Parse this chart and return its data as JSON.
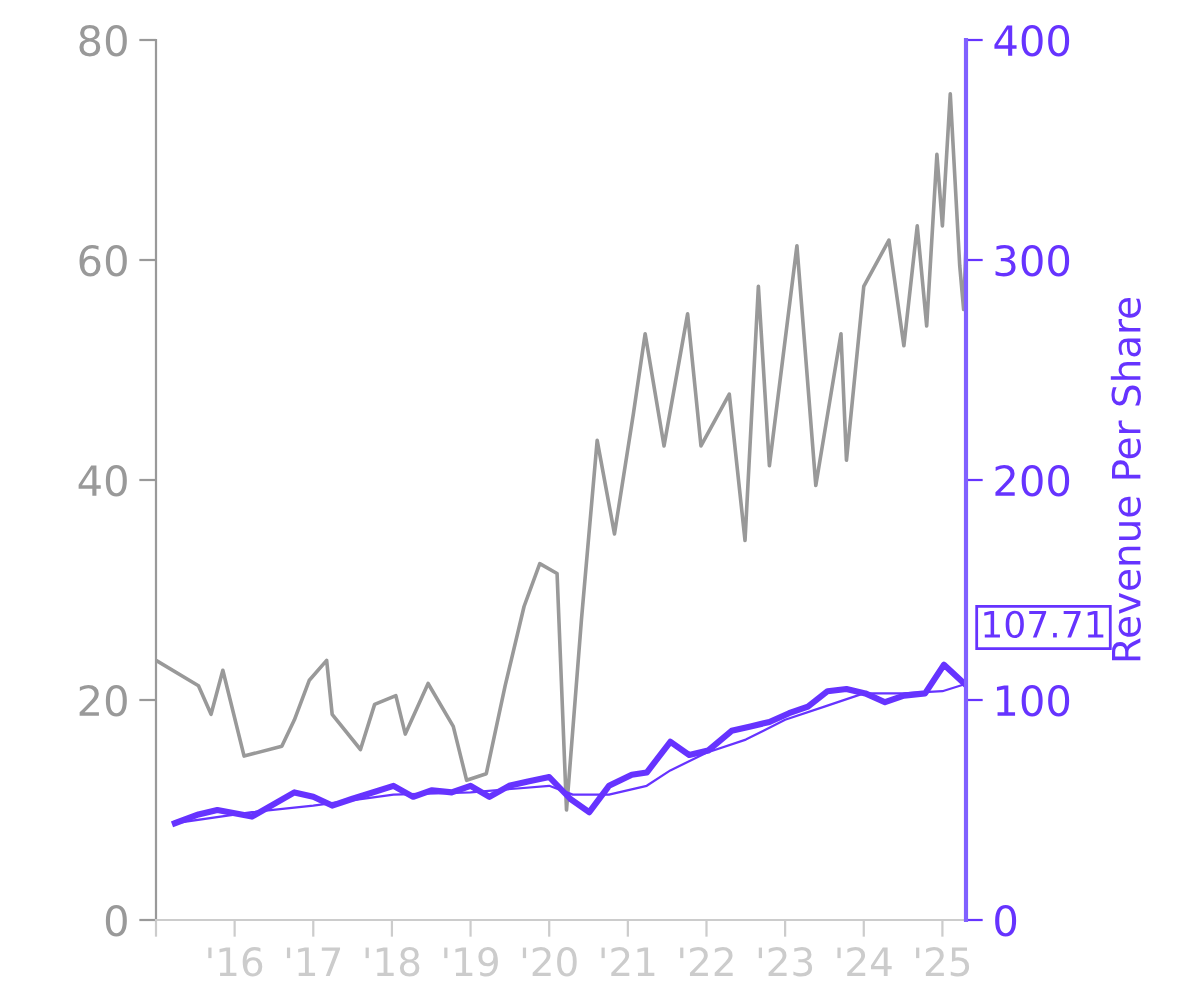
{
  "chart_data": {
    "type": "line",
    "y2label": "Revenue Per Share",
    "xlim": [
      2015.0,
      2025.3
    ],
    "xticks": [
      {
        "value": 2015,
        "label": null
      },
      {
        "value": 2016,
        "label": "'16"
      },
      {
        "value": 2017,
        "label": "'17"
      },
      {
        "value": 2018,
        "label": "'18"
      },
      {
        "value": 2019,
        "label": "'19"
      },
      {
        "value": 2020,
        "label": "'20"
      },
      {
        "value": 2021,
        "label": "'21"
      },
      {
        "value": 2022,
        "label": "'22"
      },
      {
        "value": 2023,
        "label": "'23"
      },
      {
        "value": 2024,
        "label": "'24"
      },
      {
        "value": 2025,
        "label": "'25"
      }
    ],
    "ylim": [
      0,
      80
    ],
    "yticks": [
      0,
      20,
      40,
      60,
      80
    ],
    "y2lim": [
      0,
      400
    ],
    "y2ticks": [
      0,
      100,
      200,
      300,
      400
    ],
    "grid": false,
    "marker": "none",
    "line_style": "solid",
    "series": [
      {
        "axis": "y",
        "color": "#999999",
        "x": [
          2015.0,
          2015.54,
          2015.7,
          2015.85,
          2016.12,
          2016.6,
          2016.76,
          2016.95,
          2017.17,
          2017.24,
          2017.6,
          2017.78,
          2018.05,
          2018.17,
          2018.46,
          2018.78,
          2018.95,
          2019.2,
          2019.44,
          2019.68,
          2019.88,
          2020.1,
          2020.22,
          2020.41,
          2020.61,
          2020.83,
          2021.07,
          2021.22,
          2021.46,
          2021.76,
          2021.93,
          2022.29,
          2022.49,
          2022.66,
          2022.8,
          2023.15,
          2023.39,
          2023.71,
          2023.78,
          2024.0,
          2024.32,
          2024.51,
          2024.68,
          2024.8,
          2024.93,
          2025.0,
          2025.1,
          2025.22,
          2025.27,
          2025.3
        ],
        "values": [
          23.6,
          21.3,
          18.7,
          22.7,
          14.9,
          15.8,
          18.2,
          21.8,
          23.6,
          18.7,
          15.5,
          19.6,
          20.4,
          16.9,
          21.5,
          17.6,
          12.7,
          13.3,
          21.3,
          28.5,
          32.4,
          31.5,
          10.0,
          27.3,
          43.6,
          35.1,
          46.0,
          53.3,
          43.1,
          55.1,
          43.1,
          47.8,
          34.5,
          57.6,
          41.3,
          61.3,
          39.5,
          53.3,
          41.8,
          57.6,
          61.8,
          52.2,
          63.1,
          54.0,
          69.6,
          63.1,
          75.1,
          59.5,
          55.5,
          61.3
        ]
      },
      {
        "axis": "y2",
        "color": "#6633ff",
        "x": [
          2015.24,
          2016.22,
          2017.0,
          2018.02,
          2019.0,
          2020.0,
          2020.3,
          2020.76,
          2021.24,
          2021.54,
          2022.0,
          2022.5,
          2023.0,
          2023.5,
          2024.0,
          2024.5,
          2025.0,
          2025.27
        ],
        "values": [
          44,
          49,
          52,
          57,
          58,
          61,
          57,
          57,
          61,
          68,
          76,
          82,
          91,
          97,
          103,
          103,
          104,
          107
        ]
      },
      {
        "axis": "y2",
        "color": "#6633ff",
        "x": [
          2015.24,
          2015.54,
          2015.78,
          2016.22,
          2016.76,
          2017.0,
          2017.24,
          2017.49,
          2018.02,
          2018.27,
          2018.51,
          2018.76,
          2019.0,
          2019.24,
          2019.49,
          2019.73,
          2020.0,
          2020.27,
          2020.51,
          2020.76,
          2021.05,
          2021.24,
          2021.54,
          2021.78,
          2022.02,
          2022.32,
          2022.56,
          2022.8,
          2023.05,
          2023.29,
          2023.54,
          2023.78,
          2024.02,
          2024.27,
          2024.51,
          2024.78,
          2025.02,
          2025.27
        ],
        "values": [
          44,
          48,
          50,
          47,
          58,
          56,
          52,
          55,
          61,
          56,
          59,
          58,
          61,
          56,
          61,
          63,
          65,
          55,
          49,
          61,
          66,
          67,
          81,
          75,
          77,
          86,
          88,
          90,
          94,
          97,
          104,
          105,
          103,
          99,
          102,
          103,
          116,
          107.71
        ],
        "value_labels": [
          null,
          null,
          null,
          null,
          null,
          null,
          null,
          null,
          null,
          null,
          null,
          null,
          null,
          null,
          null,
          null,
          null,
          null,
          null,
          null,
          null,
          null,
          null,
          null,
          null,
          null,
          null,
          null,
          null,
          null,
          null,
          null,
          null,
          null,
          null,
          null,
          null,
          "107.71"
        ]
      }
    ]
  }
}
